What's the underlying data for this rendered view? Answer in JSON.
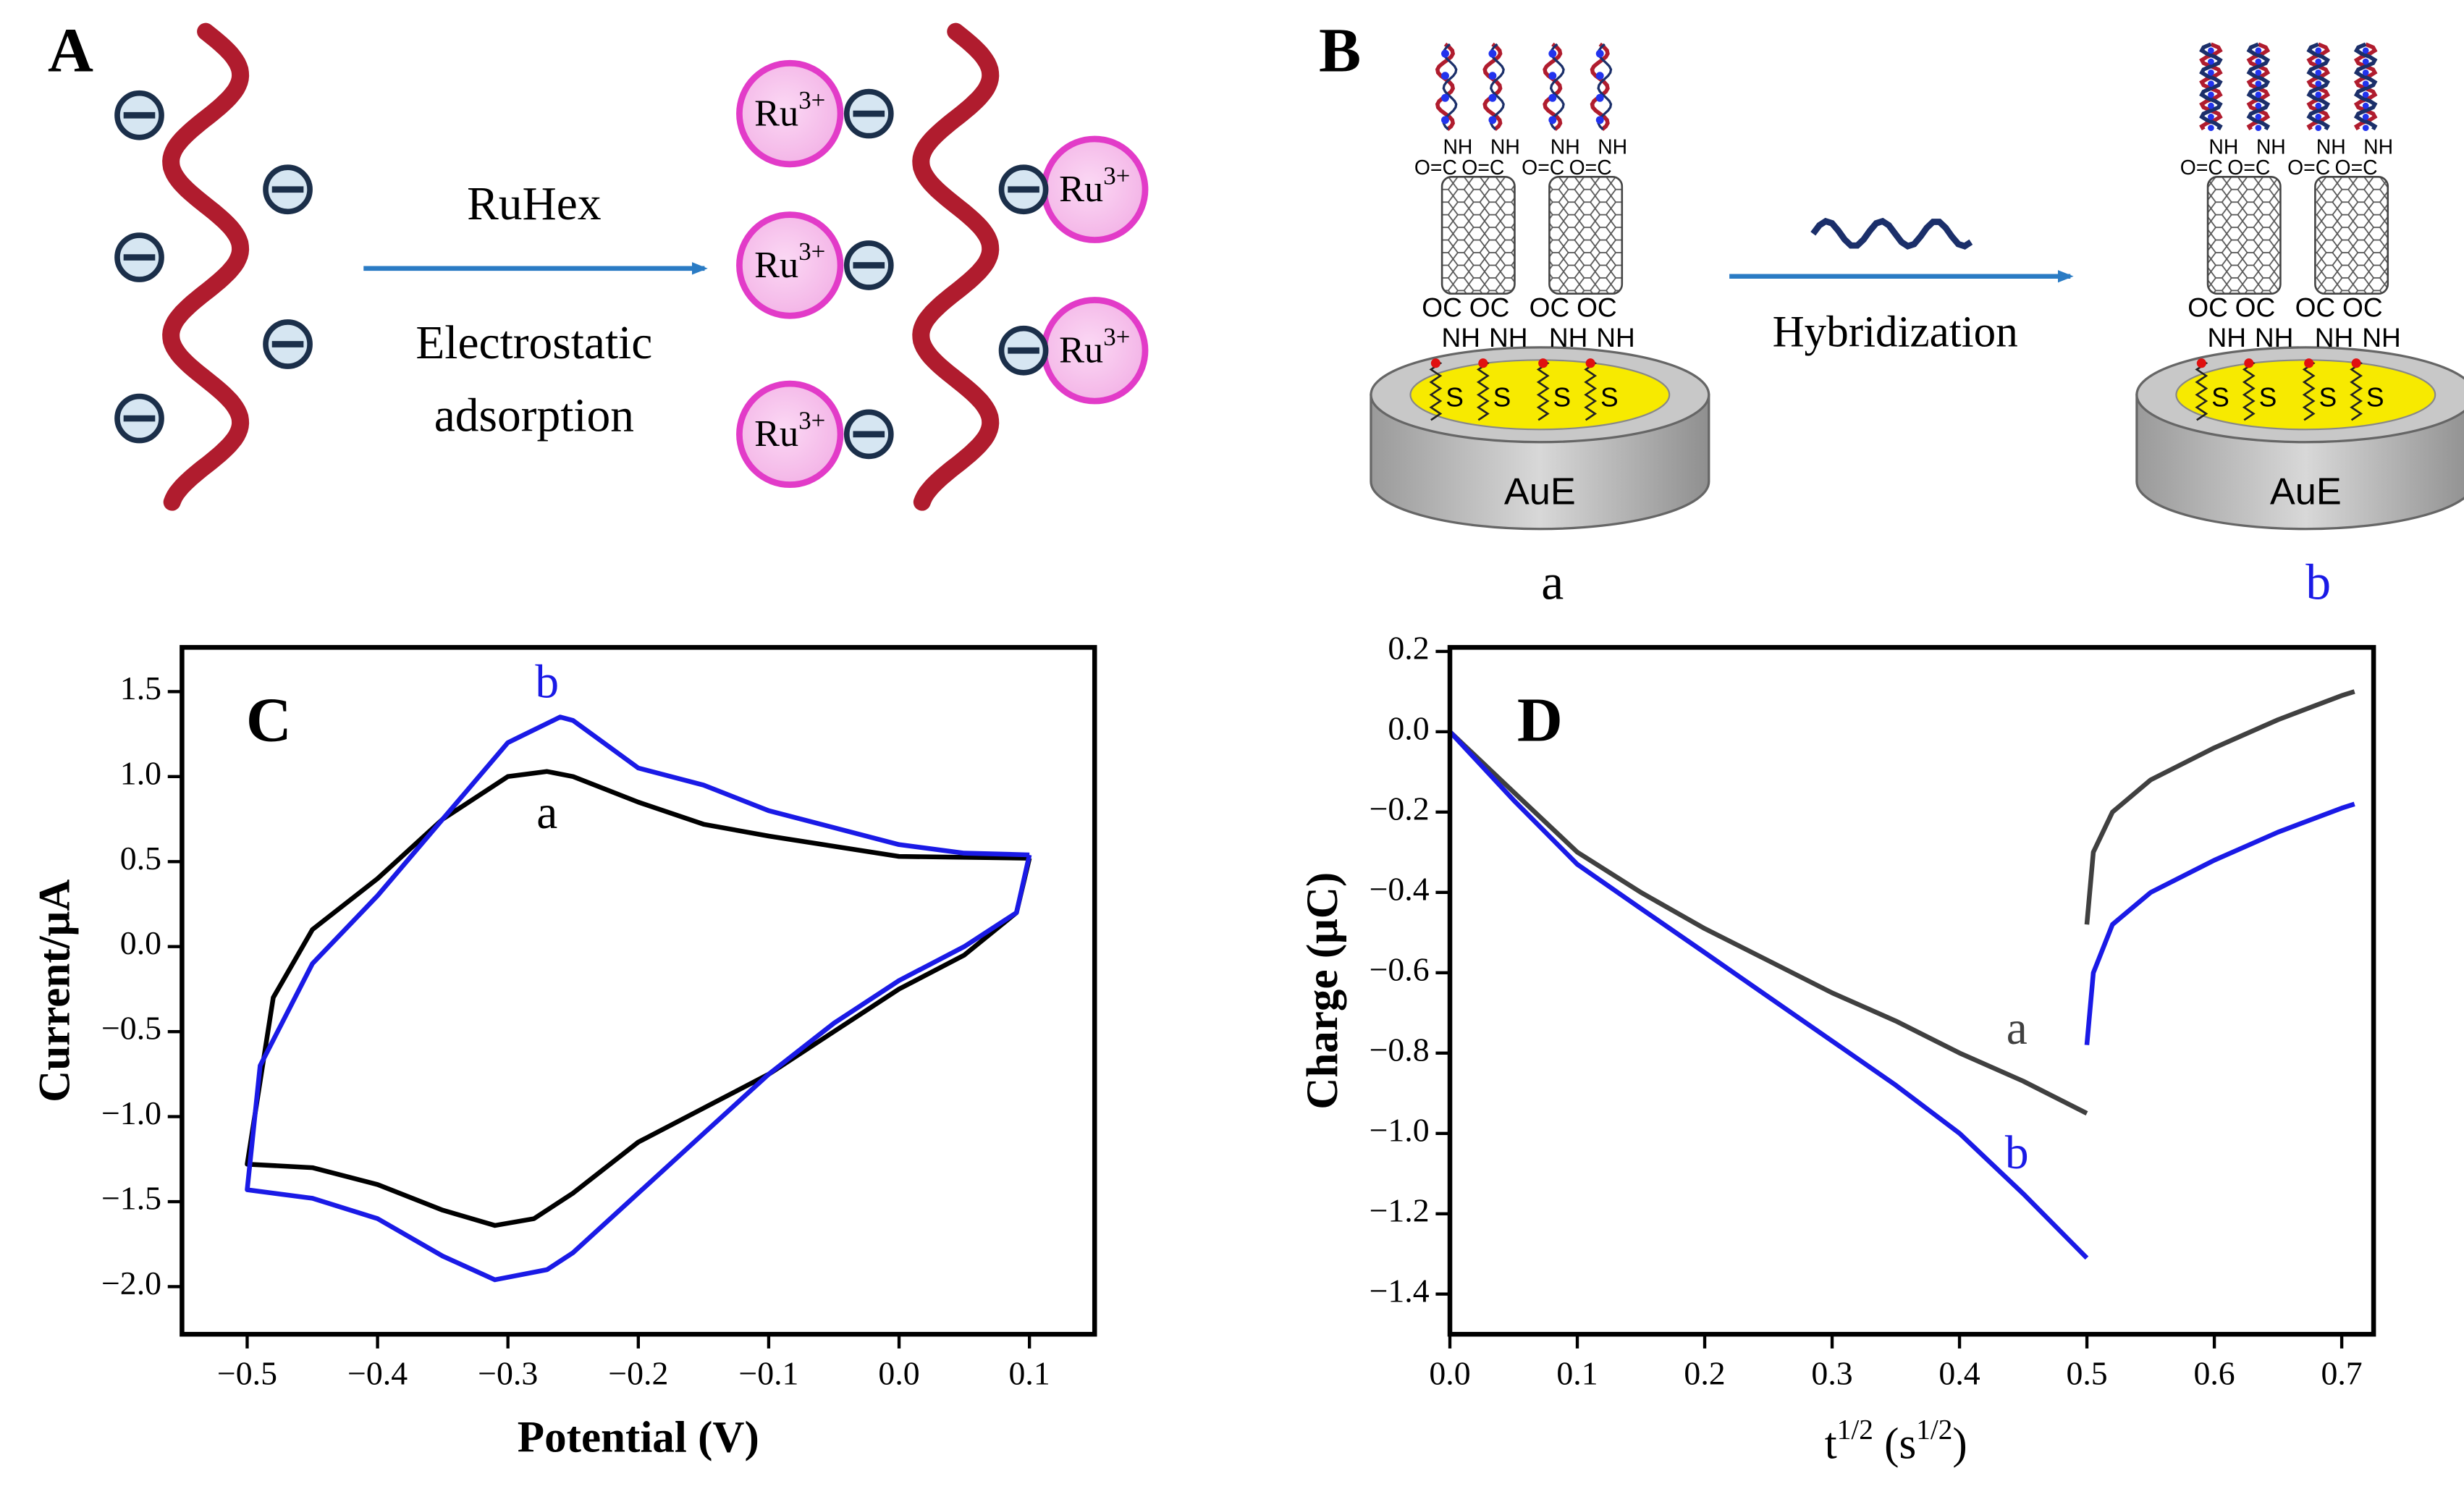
{
  "diagram_a": {
    "label": "A",
    "arrow_label": "RuHex",
    "arrow_caption": [
      "Electrostatic",
      "adsorption"
    ],
    "ions": [
      {
        "symbol": "Ru",
        "charge": "3+"
      },
      {
        "symbol": "Ru",
        "charge": "3+"
      },
      {
        "symbol": "Ru",
        "charge": "3+"
      },
      {
        "symbol": "Ru",
        "charge": "3+"
      },
      {
        "symbol": "Ru",
        "charge": "3+"
      }
    ]
  },
  "diagram_b": {
    "label": "B",
    "arrow_label": "Hybridization",
    "electrodes": [
      {
        "name": "AuE",
        "caption": "a",
        "color": "#000000",
        "top_groups": [
          "NH",
          "NH",
          "NH",
          "NH"
        ],
        "carbonyls": [
          "O=C",
          "O=C",
          "O=C",
          "O=C"
        ],
        "bottom_carbonyls": [
          "OC",
          "OC",
          "OC",
          "OC"
        ],
        "bottom_groups": [
          "NH",
          "NH",
          "NH",
          "NH"
        ],
        "thiols": [
          "S",
          "S",
          "S",
          "S"
        ]
      },
      {
        "name": "AuE",
        "caption": "b",
        "color": "#1a1ae6",
        "top_groups": [
          "NH",
          "NH",
          "NH",
          "NH"
        ],
        "carbonyls": [
          "O=C",
          "O=C",
          "O=C",
          "O=C"
        ],
        "bottom_carbonyls": [
          "OC",
          "OC",
          "OC",
          "OC"
        ],
        "bottom_groups": [
          "NH",
          "NH",
          "NH",
          "NH"
        ],
        "thiols": [
          "S",
          "S",
          "S",
          "S"
        ]
      }
    ]
  },
  "chart_data": [
    {
      "type": "line",
      "panel_label": "C",
      "xlabel": "Potential (V)",
      "ylabel": "Current/μA",
      "xlim": [
        -0.55,
        0.15
      ],
      "ylim": [
        -2.28,
        1.76
      ],
      "xticks": [
        {
          "value": -0.5,
          "label": "−0.5"
        },
        {
          "value": -0.4,
          "label": "−0.4"
        },
        {
          "value": -0.3,
          "label": "−0.3"
        },
        {
          "value": -0.2,
          "label": "−0.2"
        },
        {
          "value": -0.1,
          "label": "−0.1"
        },
        {
          "value": 0.0,
          "label": "0.0"
        },
        0.1
      ],
      "yticks": [
        1.5,
        {
          "value": 1.0,
          "label": "1.0"
        },
        0.5,
        {
          "value": 0.0,
          "label": "0.0"
        },
        {
          "value": -0.5,
          "label": "−0.5"
        },
        {
          "value": -1.0,
          "label": "−1.0"
        },
        {
          "value": -1.5,
          "label": "−1.5"
        },
        {
          "value": -2.0,
          "label": "−2.0"
        }
      ],
      "series": [
        {
          "name": "a",
          "color": "#000000",
          "x": [
            0.1,
            0.0,
            -0.1,
            -0.15,
            -0.2,
            -0.25,
            -0.27,
            -0.3,
            -0.35,
            -0.4,
            -0.45,
            -0.48,
            -0.5,
            -0.45,
            -0.4,
            -0.35,
            -0.31,
            -0.28,
            -0.25,
            -0.2,
            -0.15,
            -0.1,
            -0.05,
            0.0,
            0.05,
            0.09,
            0.1
          ],
          "values": [
            0.52,
            0.53,
            0.65,
            0.72,
            0.85,
            1.0,
            1.03,
            1.0,
            0.75,
            0.4,
            0.1,
            -0.3,
            -1.28,
            -1.3,
            -1.4,
            -1.55,
            -1.64,
            -1.6,
            -1.45,
            -1.15,
            -0.95,
            -0.75,
            -0.5,
            -0.25,
            -0.05,
            0.2,
            0.52
          ]
        },
        {
          "name": "b",
          "color": "#1a1ae6",
          "x": [
            0.1,
            0.05,
            0.0,
            -0.1,
            -0.15,
            -0.2,
            -0.25,
            -0.26,
            -0.3,
            -0.35,
            -0.4,
            -0.45,
            -0.49,
            -0.5,
            -0.45,
            -0.4,
            -0.35,
            -0.31,
            -0.27,
            -0.25,
            -0.2,
            -0.15,
            -0.1,
            -0.05,
            0.0,
            0.05,
            0.09,
            0.1
          ],
          "values": [
            0.54,
            0.55,
            0.6,
            0.8,
            0.95,
            1.05,
            1.33,
            1.35,
            1.2,
            0.75,
            0.3,
            -0.1,
            -0.7,
            -1.43,
            -1.48,
            -1.6,
            -1.82,
            -1.96,
            -1.9,
            -1.8,
            -1.45,
            -1.1,
            -0.75,
            -0.45,
            -0.2,
            0.0,
            0.2,
            0.54
          ]
        }
      ]
    },
    {
      "type": "line",
      "panel_label": "D",
      "xlabel_parts": [
        "t",
        "1/2",
        " (s",
        "1/2",
        ")"
      ],
      "ylabel": "Charge (μC)",
      "xlim": [
        0.0,
        0.725
      ],
      "ylim": [
        -1.5,
        0.21
      ],
      "xticks": [
        {
          "value": 0.0,
          "label": "0.0"
        },
        0.1,
        0.2,
        0.3,
        0.4,
        0.5,
        0.6,
        0.7
      ],
      "yticks": [
        0.2,
        {
          "value": 0.0,
          "label": "0.0"
        },
        {
          "value": -0.2,
          "label": "−0.2"
        },
        {
          "value": -0.4,
          "label": "−0.4"
        },
        {
          "value": -0.6,
          "label": "−0.6"
        },
        {
          "value": -0.8,
          "label": "−0.8"
        },
        {
          "value": -1.0,
          "label": "−1.0"
        },
        {
          "value": -1.2,
          "label": "−1.2"
        },
        {
          "value": -1.4,
          "label": "−1.4"
        }
      ],
      "x": [
        0.0,
        0.05,
        0.1,
        0.15,
        0.2,
        0.25,
        0.3,
        0.35,
        0.4,
        0.45,
        0.5,
        0.5,
        0.5,
        0.505,
        0.52,
        0.55,
        0.6,
        0.65,
        0.7,
        0.71
      ],
      "series": [
        {
          "name": "a",
          "color": "#404040",
          "values": [
            0.0,
            -0.15,
            -0.3,
            -0.4,
            -0.49,
            -0.57,
            -0.65,
            -0.72,
            -0.8,
            -0.87,
            -0.95,
            null,
            -0.48,
            -0.3,
            -0.2,
            -0.12,
            -0.04,
            0.03,
            0.09,
            0.1
          ]
        },
        {
          "name": "b",
          "color": "#1a1ae6",
          "values": [
            0.0,
            -0.17,
            -0.33,
            -0.44,
            -0.55,
            -0.66,
            -0.77,
            -0.88,
            -1.0,
            -1.15,
            -1.31,
            null,
            -0.78,
            -0.6,
            -0.48,
            -0.4,
            -0.32,
            -0.25,
            -0.19,
            -0.18
          ]
        }
      ]
    }
  ]
}
